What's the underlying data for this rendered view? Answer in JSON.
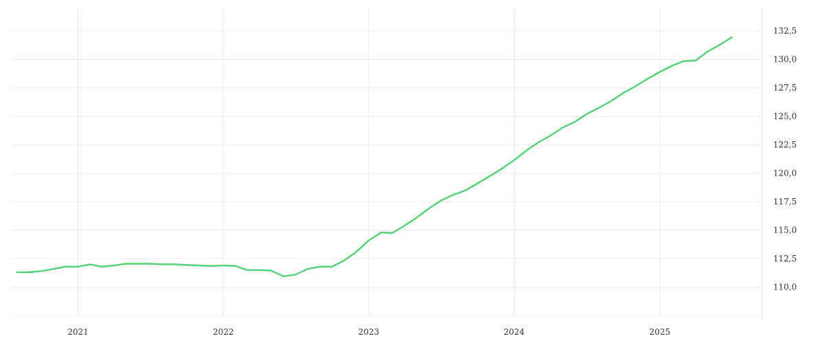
{
  "chart_data": {
    "type": "line",
    "title": "",
    "xlabel": "",
    "ylabel": "",
    "x_axis": {
      "type": "date",
      "range": [
        "2020-07-15",
        "2025-09-15"
      ],
      "ticks": [
        {
          "date": "2021-01-01",
          "label": "2021"
        },
        {
          "date": "2022-01-01",
          "label": "2022"
        },
        {
          "date": "2023-01-01",
          "label": "2023"
        },
        {
          "date": "2024-01-01",
          "label": "2024"
        },
        {
          "date": "2025-01-01",
          "label": "2025"
        }
      ]
    },
    "y_axis": {
      "position": "right",
      "range": [
        107.5,
        134.5
      ],
      "ticks": [
        {
          "value": 110.0,
          "label": "110,0"
        },
        {
          "value": 112.5,
          "label": "112,5"
        },
        {
          "value": 115.0,
          "label": "115,0"
        },
        {
          "value": 117.5,
          "label": "117,5"
        },
        {
          "value": 120.0,
          "label": "120,0"
        },
        {
          "value": 122.5,
          "label": "122,5"
        },
        {
          "value": 125.0,
          "label": "125,0"
        },
        {
          "value": 127.5,
          "label": "127,5"
        },
        {
          "value": 130.0,
          "label": "130,0"
        },
        {
          "value": 132.5,
          "label": "132,5"
        }
      ]
    },
    "grid": true,
    "legend": "none",
    "series": [
      {
        "color": "#58d27a",
        "points": [
          [
            "2020-08-01",
            111.3
          ],
          [
            "2020-09-01",
            111.3
          ],
          [
            "2020-10-01",
            111.4
          ],
          [
            "2020-11-01",
            111.6
          ],
          [
            "2020-12-01",
            111.8
          ],
          [
            "2021-01-01",
            111.8
          ],
          [
            "2021-02-01",
            112.0
          ],
          [
            "2021-03-01",
            111.8
          ],
          [
            "2021-04-01",
            111.9
          ],
          [
            "2021-05-01",
            112.05
          ],
          [
            "2021-06-01",
            112.05
          ],
          [
            "2021-07-01",
            112.05
          ],
          [
            "2021-08-01",
            112.0
          ],
          [
            "2021-09-01",
            112.0
          ],
          [
            "2021-10-01",
            111.95
          ],
          [
            "2021-11-01",
            111.9
          ],
          [
            "2021-12-01",
            111.85
          ],
          [
            "2022-01-01",
            111.9
          ],
          [
            "2022-02-01",
            111.85
          ],
          [
            "2022-03-01",
            111.5
          ],
          [
            "2022-04-01",
            111.5
          ],
          [
            "2022-05-01",
            111.45
          ],
          [
            "2022-06-01",
            110.95
          ],
          [
            "2022-07-01",
            111.1
          ],
          [
            "2022-08-01",
            111.6
          ],
          [
            "2022-09-01",
            111.8
          ],
          [
            "2022-10-01",
            111.8
          ],
          [
            "2022-11-01",
            112.35
          ],
          [
            "2022-12-01",
            113.1
          ],
          [
            "2023-01-01",
            114.1
          ],
          [
            "2023-02-01",
            114.8
          ],
          [
            "2023-03-01",
            114.75
          ],
          [
            "2023-04-01",
            115.4
          ],
          [
            "2023-05-01",
            116.1
          ],
          [
            "2023-06-01",
            116.9
          ],
          [
            "2023-07-01",
            117.6
          ],
          [
            "2023-08-01",
            118.1
          ],
          [
            "2023-09-01",
            118.5
          ],
          [
            "2023-10-01",
            119.1
          ],
          [
            "2023-11-01",
            119.75
          ],
          [
            "2023-12-01",
            120.4
          ],
          [
            "2024-01-01",
            121.15
          ],
          [
            "2024-02-01",
            122.0
          ],
          [
            "2024-03-01",
            122.7
          ],
          [
            "2024-04-01",
            123.3
          ],
          [
            "2024-05-01",
            124.0
          ],
          [
            "2024-06-01",
            124.5
          ],
          [
            "2024-07-01",
            125.2
          ],
          [
            "2024-08-01",
            125.75
          ],
          [
            "2024-09-01",
            126.35
          ],
          [
            "2024-10-01",
            127.05
          ],
          [
            "2024-11-01",
            127.65
          ],
          [
            "2024-12-01",
            128.3
          ],
          [
            "2025-01-01",
            128.9
          ],
          [
            "2025-02-01",
            129.45
          ],
          [
            "2025-03-01",
            129.85
          ],
          [
            "2025-04-01",
            129.9
          ],
          [
            "2025-05-01",
            130.7
          ],
          [
            "2025-06-01",
            131.3
          ],
          [
            "2025-07-01",
            131.95
          ]
        ]
      }
    ]
  }
}
